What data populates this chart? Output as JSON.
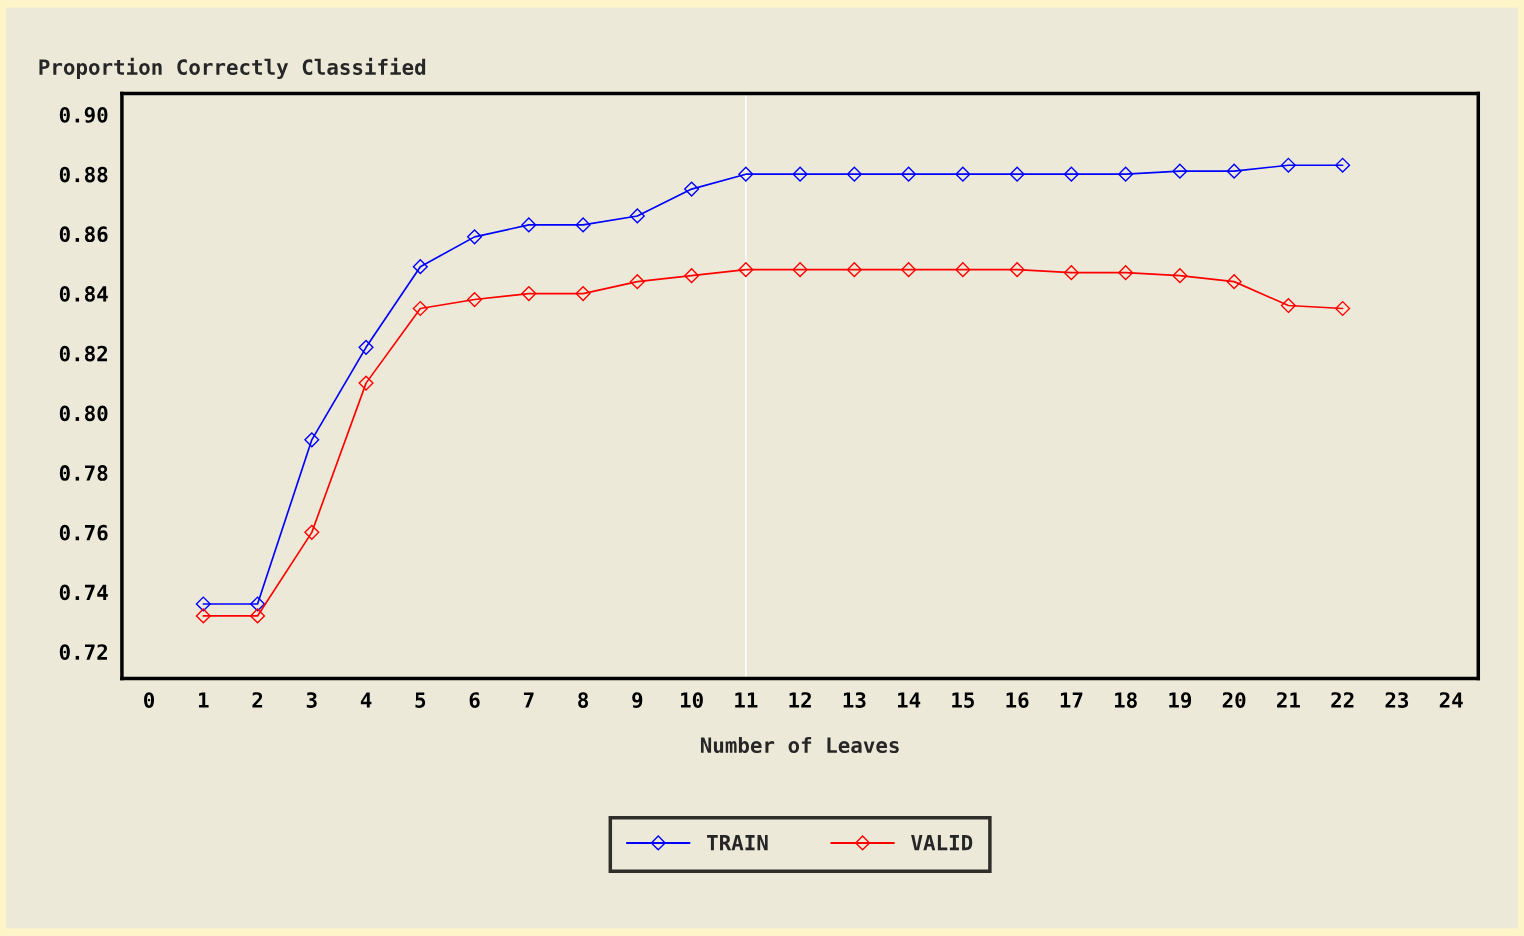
{
  "chart_data": {
    "type": "line",
    "ylabel": "Proportion Correctly Classified",
    "xlabel": "Number of Leaves",
    "x": [
      1,
      2,
      3,
      4,
      5,
      6,
      7,
      8,
      9,
      10,
      11,
      12,
      13,
      14,
      15,
      16,
      17,
      18,
      19,
      20,
      21,
      22
    ],
    "series": [
      {
        "name": "TRAIN",
        "color": "#0000ff",
        "values": [
          0.736,
          0.736,
          0.791,
          0.822,
          0.849,
          0.859,
          0.863,
          0.863,
          0.866,
          0.875,
          0.88,
          0.88,
          0.88,
          0.88,
          0.88,
          0.88,
          0.88,
          0.88,
          0.881,
          0.881,
          0.883,
          0.883
        ]
      },
      {
        "name": "VALID",
        "color": "#ff0000",
        "values": [
          0.732,
          0.732,
          0.76,
          0.81,
          0.835,
          0.838,
          0.84,
          0.84,
          0.844,
          0.846,
          0.848,
          0.848,
          0.848,
          0.848,
          0.848,
          0.848,
          0.847,
          0.847,
          0.846,
          0.844,
          0.836,
          0.835
        ]
      }
    ],
    "xlim": [
      -0.5,
      24.5
    ],
    "xticks": [
      0,
      1,
      2,
      3,
      4,
      5,
      6,
      7,
      8,
      9,
      10,
      11,
      12,
      13,
      14,
      15,
      16,
      17,
      18,
      19,
      20,
      21,
      22,
      23,
      24
    ],
    "ylim": [
      0.711,
      0.907
    ],
    "yticks": [
      {
        "value": 0.72,
        "label": "0.72"
      },
      {
        "value": 0.74,
        "label": "0.74"
      },
      {
        "value": 0.76,
        "label": "0.76"
      },
      {
        "value": 0.78,
        "label": "0.78"
      },
      {
        "value": 0.8,
        "label": "0.80"
      },
      {
        "value": 0.82,
        "label": "0.82"
      },
      {
        "value": 0.84,
        "label": "0.84"
      },
      {
        "value": 0.86,
        "label": "0.86"
      },
      {
        "value": 0.88,
        "label": "0.88"
      },
      {
        "value": 0.9,
        "label": "0.90"
      }
    ],
    "ref_lines": [
      {
        "axis": "x",
        "value": 11,
        "color": "#ffffff"
      }
    ],
    "marker": "diamond",
    "line_style": "solid",
    "grid": false,
    "legend": "bottom"
  }
}
